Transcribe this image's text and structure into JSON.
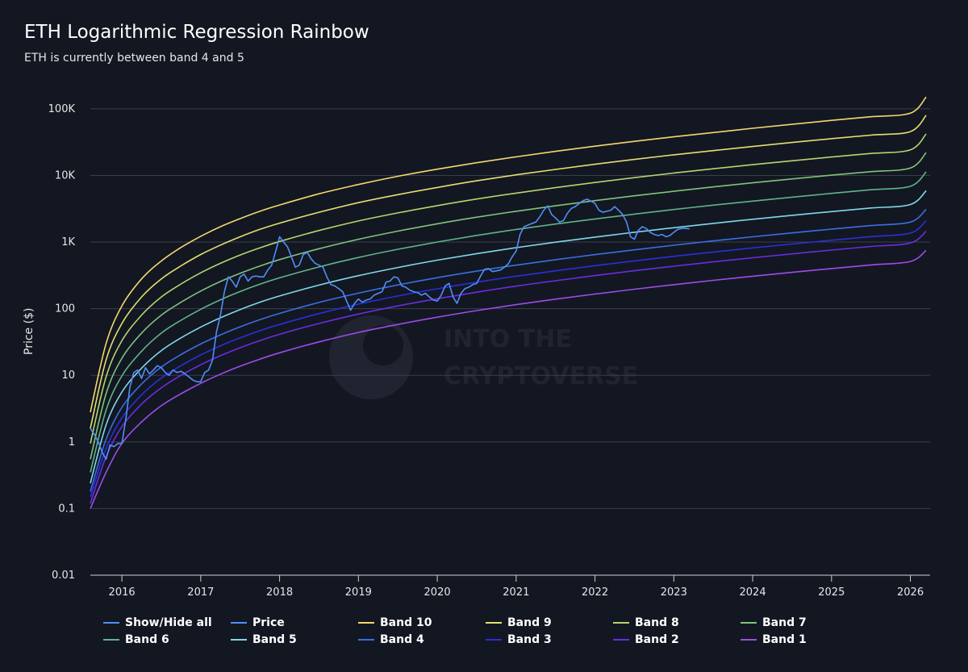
{
  "title": "ETH Logarithmic Regression Rainbow",
  "subtitle": "ETH is currently between band 4 and 5",
  "watermark": {
    "line1": "INTO THE",
    "line2": "CRYPTOVERSE"
  },
  "legend": [
    {
      "label": "Show/Hide all",
      "color": "#4f8ef7"
    },
    {
      "label": "Price",
      "color": "#4f8ef7"
    },
    {
      "label": "Band 10",
      "color": "#f5d76e"
    },
    {
      "label": "Band 9",
      "color": "#e3e070"
    },
    {
      "label": "Band 8",
      "color": "#b6d56f"
    },
    {
      "label": "Band 7",
      "color": "#7ec47c"
    },
    {
      "label": "Band 6",
      "color": "#5fb48a"
    },
    {
      "label": "Band 5",
      "color": "#7fd8e8"
    },
    {
      "label": "Band 4",
      "color": "#3a6fe0"
    },
    {
      "label": "Band 3",
      "color": "#2b2fd6"
    },
    {
      "label": "Band 2",
      "color": "#6a2de0"
    },
    {
      "label": "Band 1",
      "color": "#9b4de8"
    }
  ],
  "chart_data": {
    "type": "line",
    "title": "ETH Logarithmic Regression Rainbow",
    "subtitle": "ETH is currently between band 4 and 5",
    "ylabel": "Price ($)",
    "y_scale": "log",
    "ylim": [
      0.01,
      200000
    ],
    "xlim": [
      2015.6,
      2026.25
    ],
    "y_ticks": [
      {
        "value": 0.01,
        "label": "0.01"
      },
      {
        "value": 0.1,
        "label": "0.1"
      },
      {
        "value": 1,
        "label": "1"
      },
      {
        "value": 10,
        "label": "10"
      },
      {
        "value": 100,
        "label": "100"
      },
      {
        "value": 1000,
        "label": "1K"
      },
      {
        "value": 10000,
        "label": "10K"
      },
      {
        "value": 100000,
        "label": "100K"
      }
    ],
    "x_ticks": [
      {
        "value": 2016,
        "label": "2016"
      },
      {
        "value": 2017,
        "label": "2017"
      },
      {
        "value": 2018,
        "label": "2018"
      },
      {
        "value": 2019,
        "label": "2019"
      },
      {
        "value": 2020,
        "label": "2020"
      },
      {
        "value": 2021,
        "label": "2021"
      },
      {
        "value": 2022,
        "label": "2022"
      },
      {
        "value": 2023,
        "label": "2023"
      },
      {
        "value": 2024,
        "label": "2024"
      },
      {
        "value": 2025,
        "label": "2025"
      },
      {
        "value": 2026,
        "label": "2026"
      }
    ],
    "band_x": [
      2015.6,
      2015.8,
      2016.0,
      2016.25,
      2016.5,
      2016.75,
      2017.0,
      2017.25,
      2017.5,
      2017.75,
      2018.0,
      2018.5,
      2019.0,
      2019.5,
      2020.0,
      2020.5,
      2021.0,
      2021.5,
      2022.0,
      2022.5,
      2023.0,
      2023.5,
      2024.0,
      2024.5,
      2025.0,
      2025.5,
      2026.0,
      2026.2
    ],
    "bands": [
      {
        "name": "Band 10",
        "color": "#f5d76e",
        "values": [
          2.8,
          30,
          110,
          280,
          520,
          830,
          1220,
          1700,
          2250,
          2900,
          3600,
          5300,
          7300,
          9700,
          12400,
          15500,
          19000,
          23000,
          27500,
          32500,
          38000,
          44000,
          51000,
          58500,
          67000,
          76000,
          86000,
          150000
        ]
      },
      {
        "name": "Band 9",
        "color": "#e3e070",
        "values": [
          1.6,
          17,
          60,
          150,
          280,
          440,
          650,
          900,
          1200,
          1550,
          1920,
          2800,
          3900,
          5150,
          6600,
          8300,
          10200,
          12300,
          14700,
          17400,
          20400,
          23600,
          27200,
          31200,
          35600,
          40300,
          45500,
          80000
        ]
      },
      {
        "name": "Band 8",
        "color": "#b6d56f",
        "values": [
          0.95,
          9.5,
          33,
          80,
          150,
          235,
          345,
          480,
          640,
          820,
          1020,
          1490,
          2070,
          2740,
          3520,
          4420,
          5430,
          6560,
          7830,
          9250,
          10850,
          12600,
          14500,
          16600,
          18900,
          21400,
          24200,
          42000
        ]
      },
      {
        "name": "Band 7",
        "color": "#7ec47c",
        "values": [
          0.55,
          5.3,
          18,
          43,
          80,
          125,
          184,
          256,
          340,
          437,
          545,
          795,
          1100,
          1460,
          1880,
          2360,
          2900,
          3500,
          4180,
          4940,
          5790,
          6720,
          7740,
          8860,
          10100,
          11400,
          12900,
          22000
        ]
      },
      {
        "name": "Band 6",
        "color": "#5fb48a",
        "values": [
          0.35,
          3.0,
          9.8,
          23,
          43,
          67,
          98,
          136,
          181,
          233,
          290,
          423,
          587,
          778,
          1000,
          1260,
          1545,
          1865,
          2225,
          2630,
          3080,
          3580,
          4120,
          4720,
          5380,
          6090,
          6870,
          11300
        ]
      },
      {
        "name": "Band 5",
        "color": "#7fd8e8",
        "values": [
          0.24,
          1.8,
          5.6,
          12.8,
          23.5,
          36.5,
          53,
          73,
          97,
          125,
          155,
          226,
          313,
          415,
          534,
          670,
          824,
          995,
          1187,
          1402,
          1642,
          1907,
          2198,
          2516,
          2866,
          3245,
          3660,
          5900
        ]
      },
      {
        "name": "Band 4",
        "color": "#3a6fe0",
        "values": [
          0.18,
          1.1,
          3.3,
          7.4,
          13.3,
          20.5,
          29.5,
          40.5,
          53.5,
          68.5,
          85,
          124,
          171,
          227,
          292,
          366,
          450,
          543,
          648,
          765,
          896,
          1040,
          1199,
          1372,
          1563,
          1770,
          1996,
          3100
        ]
      },
      {
        "name": "Band 3",
        "color": "#2b2fd6",
        "values": [
          0.15,
          0.8,
          2.3,
          5.1,
          9.1,
          14.0,
          20.2,
          27.7,
          36.5,
          46.7,
          58,
          84.5,
          117,
          155,
          199,
          250,
          307,
          370,
          442,
          522,
          611,
          709,
          817,
          935,
          1065,
          1206,
          1360,
          2100
        ]
      },
      {
        "name": "Band 2",
        "color": "#6a2de0",
        "values": [
          0.12,
          0.6,
          1.7,
          3.7,
          6.5,
          10.0,
          14.4,
          19.7,
          26.0,
          33.2,
          41.3,
          60,
          83,
          110,
          141,
          177,
          218,
          263,
          314,
          371,
          434,
          504,
          581,
          665,
          757,
          858,
          967,
          1450
        ]
      },
      {
        "name": "Band 1",
        "color": "#9b4de8",
        "values": [
          0.1,
          0.35,
          0.95,
          2.0,
          3.5,
          5.3,
          7.6,
          10.4,
          13.7,
          17.5,
          21.8,
          31.7,
          44,
          58,
          74.5,
          93.5,
          115,
          139,
          166,
          196,
          229,
          266,
          307,
          351,
          400,
          453,
          511,
          750
        ]
      }
    ],
    "price": {
      "name": "Price",
      "color": "#4f8ef7",
      "x": [
        2015.6,
        2015.65,
        2015.7,
        2015.75,
        2015.8,
        2015.85,
        2015.9,
        2015.95,
        2016.0,
        2016.05,
        2016.1,
        2016.15,
        2016.2,
        2016.25,
        2016.3,
        2016.35,
        2016.4,
        2016.45,
        2016.5,
        2016.55,
        2016.6,
        2016.65,
        2016.7,
        2016.75,
        2016.8,
        2016.85,
        2016.9,
        2016.95,
        2017.0,
        2017.05,
        2017.1,
        2017.15,
        2017.2,
        2017.25,
        2017.3,
        2017.35,
        2017.4,
        2017.45,
        2017.5,
        2017.55,
        2017.6,
        2017.65,
        2017.7,
        2017.75,
        2017.8,
        2017.85,
        2017.9,
        2017.95,
        2018.0,
        2018.05,
        2018.1,
        2018.15,
        2018.2,
        2018.25,
        2018.3,
        2018.35,
        2018.4,
        2018.45,
        2018.5,
        2018.55,
        2018.6,
        2018.65,
        2018.7,
        2018.75,
        2018.8,
        2018.85,
        2018.9,
        2018.95,
        2019.0,
        2019.05,
        2019.1,
        2019.15,
        2019.2,
        2019.25,
        2019.3,
        2019.35,
        2019.4,
        2019.45,
        2019.5,
        2019.55,
        2019.6,
        2019.65,
        2019.7,
        2019.75,
        2019.8,
        2019.85,
        2019.9,
        2019.95,
        2020.0,
        2020.05,
        2020.1,
        2020.15,
        2020.2,
        2020.25,
        2020.3,
        2020.35,
        2020.4,
        2020.45,
        2020.5,
        2020.55,
        2020.6,
        2020.65,
        2020.7,
        2020.75,
        2020.8,
        2020.85,
        2020.9,
        2020.95,
        2021.0,
        2021.05,
        2021.1,
        2021.15,
        2021.2,
        2021.25,
        2021.3,
        2021.35,
        2021.4,
        2021.45,
        2021.5,
        2021.55,
        2021.6,
        2021.65,
        2021.7,
        2021.75,
        2021.8,
        2021.85,
        2021.9,
        2021.95,
        2022.0,
        2022.05,
        2022.1,
        2022.15,
        2022.2,
        2022.25,
        2022.3,
        2022.35,
        2022.4,
        2022.45,
        2022.5,
        2022.55,
        2022.6,
        2022.65,
        2022.7,
        2022.75,
        2022.8,
        2022.85,
        2022.9,
        2022.95,
        2023.0,
        2023.05,
        2023.1,
        2023.15,
        2023.2
      ],
      "values": [
        1.6,
        1.3,
        1.0,
        0.7,
        0.55,
        0.9,
        0.85,
        0.95,
        0.95,
        2.2,
        6.5,
        11,
        12,
        9,
        13,
        10.5,
        12,
        14,
        13,
        11,
        10,
        12,
        11,
        11.5,
        10.5,
        9.5,
        8.5,
        8,
        8,
        11,
        12,
        17,
        45,
        80,
        180,
        300,
        260,
        210,
        300,
        330,
        260,
        300,
        310,
        300,
        300,
        380,
        450,
        720,
        1200,
        1000,
        850,
        600,
        420,
        450,
        650,
        700,
        560,
        480,
        450,
        420,
        300,
        230,
        220,
        200,
        180,
        130,
        95,
        120,
        140,
        125,
        135,
        140,
        160,
        170,
        180,
        250,
        260,
        300,
        290,
        220,
        210,
        190,
        180,
        175,
        160,
        170,
        150,
        135,
        130,
        160,
        220,
        240,
        150,
        120,
        170,
        200,
        210,
        230,
        240,
        310,
        390,
        400,
        360,
        370,
        380,
        420,
        470,
        600,
        730,
        1300,
        1700,
        1800,
        1900,
        2000,
        2400,
        3000,
        3500,
        2600,
        2300,
        2000,
        2100,
        2700,
        3200,
        3400,
        3800,
        4200,
        4400,
        4100,
        3800,
        3000,
        2800,
        2900,
        3000,
        3400,
        3000,
        2600,
        2000,
        1200,
        1100,
        1500,
        1700,
        1600,
        1400,
        1300,
        1250,
        1300,
        1200,
        1250,
        1400,
        1550,
        1600,
        1600,
        1580
      ]
    }
  }
}
